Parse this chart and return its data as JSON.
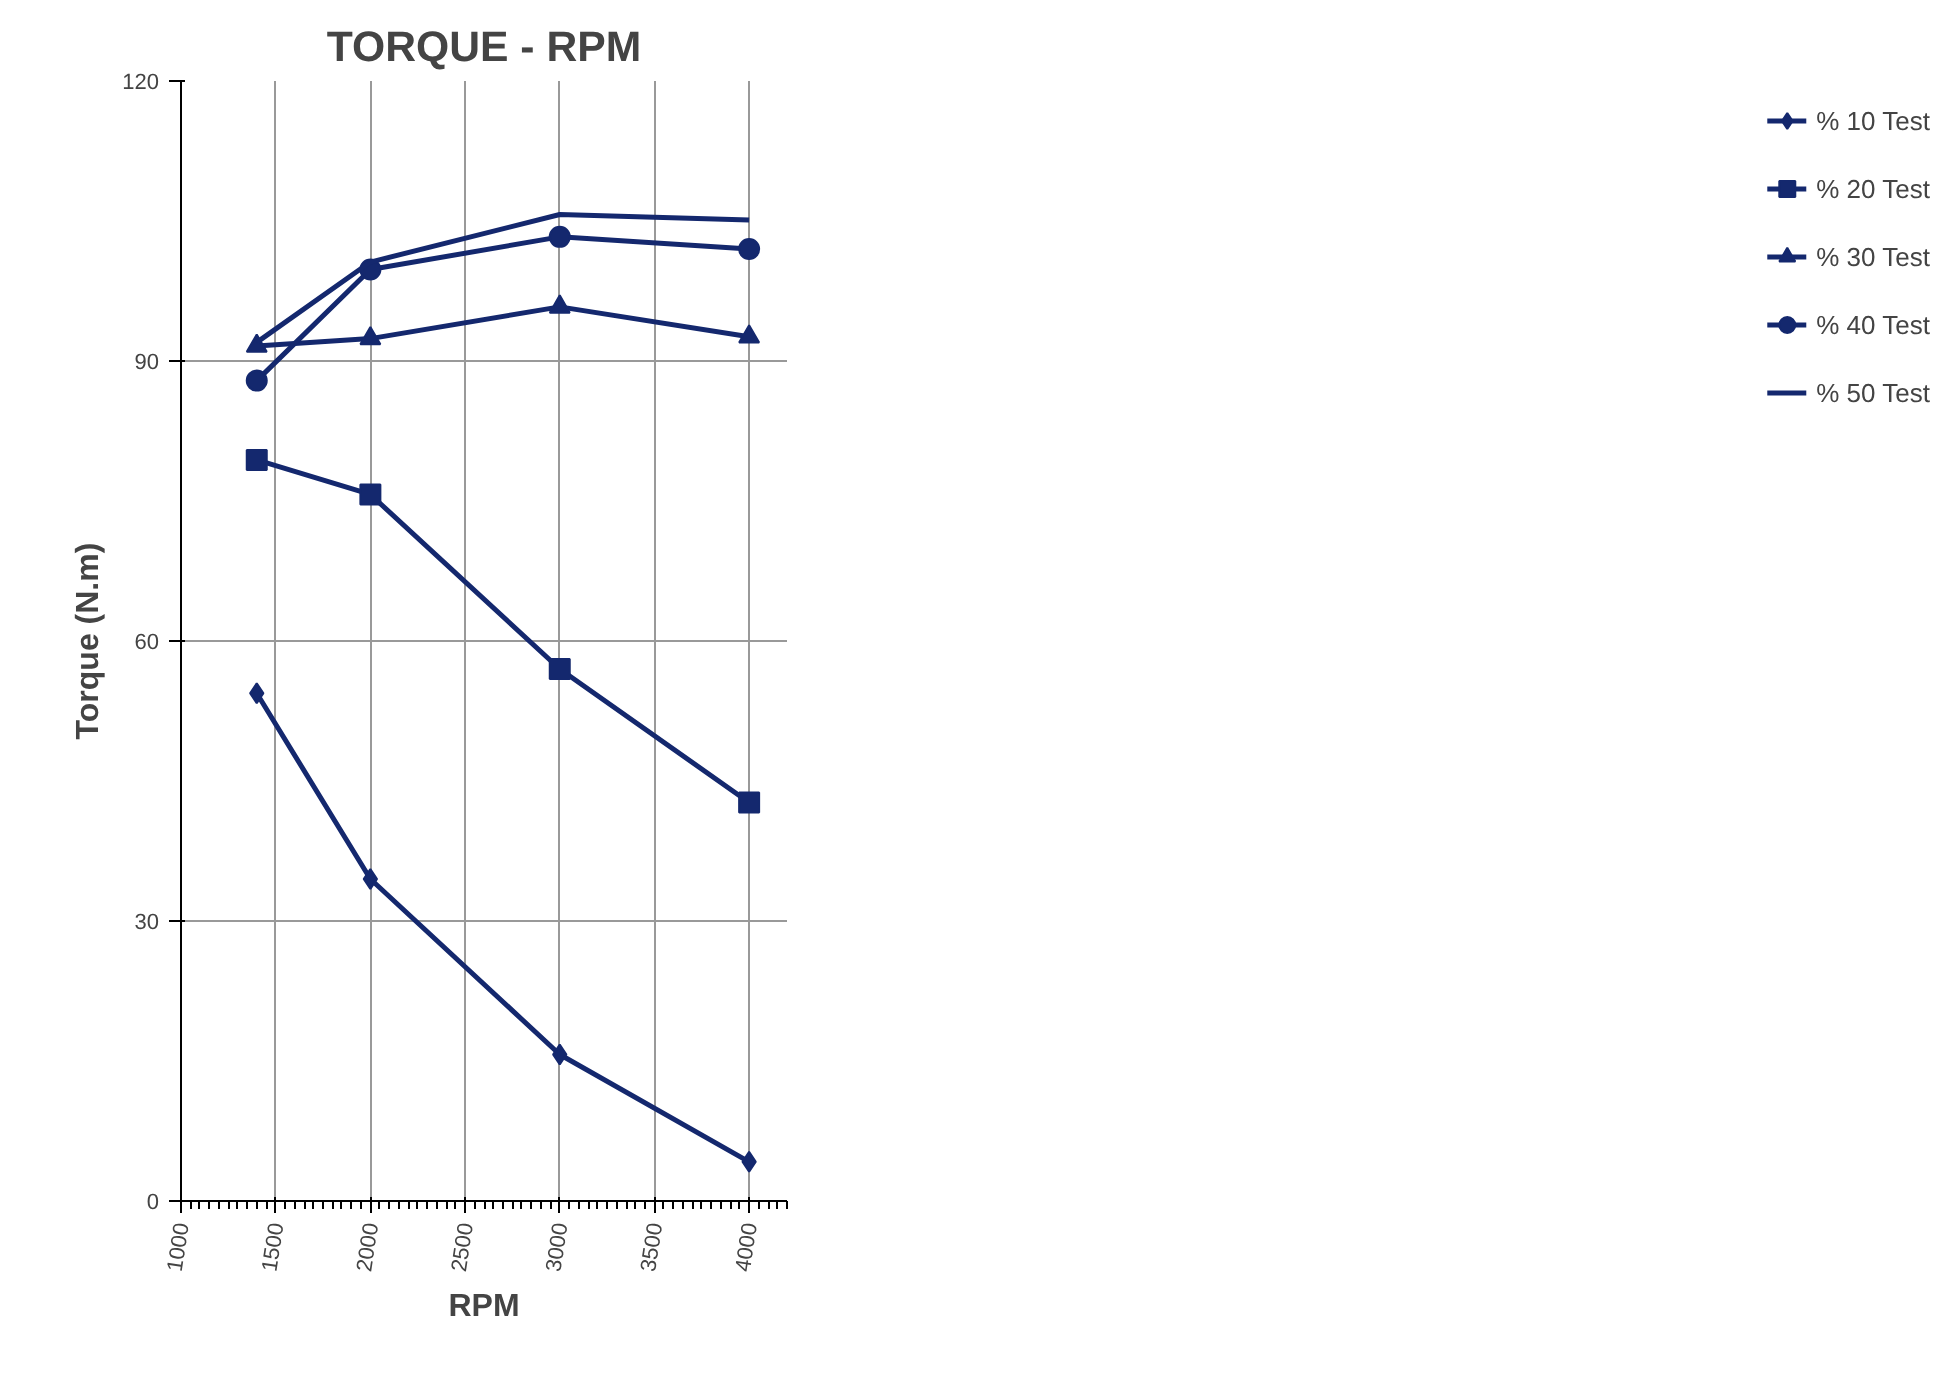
{
  "chart_data": {
    "type": "line",
    "title": "TORQUE - RPM",
    "xlabel": "RPM",
    "ylabel": "Torque (N.m)",
    "x": [
      1400,
      2000,
      3000,
      4000
    ],
    "series": [
      {
        "name": "% 10 Test",
        "color": "#14286e",
        "marker": "diamond",
        "values": [
          54.4,
          34.5,
          15.7,
          4.2
        ]
      },
      {
        "name": "% 20 Test",
        "color": "#14286e",
        "marker": "square",
        "values": [
          79.4,
          75.7,
          57.0,
          42.7
        ]
      },
      {
        "name": "% 30 Test",
        "color": "#14286e",
        "marker": "triangle",
        "values": [
          91.6,
          92.4,
          95.8,
          92.6
        ]
      },
      {
        "name": "% 40 Test",
        "color": "#14286e",
        "marker": "circle",
        "values": [
          87.9,
          99.8,
          103.3,
          102.0
        ]
      },
      {
        "name": "% 50 Test",
        "color": "#14286e",
        "marker": "none",
        "values": [
          92.0,
          100.6,
          105.7,
          105.1
        ]
      }
    ],
    "xlim": [
      1000,
      4200
    ],
    "xticks": [
      1000,
      1500,
      2000,
      2500,
      3000,
      3500,
      4000
    ],
    "ylim": [
      0,
      120
    ],
    "yticks": [
      0,
      30,
      60,
      90,
      120
    ],
    "grid": true,
    "legend": "right"
  }
}
